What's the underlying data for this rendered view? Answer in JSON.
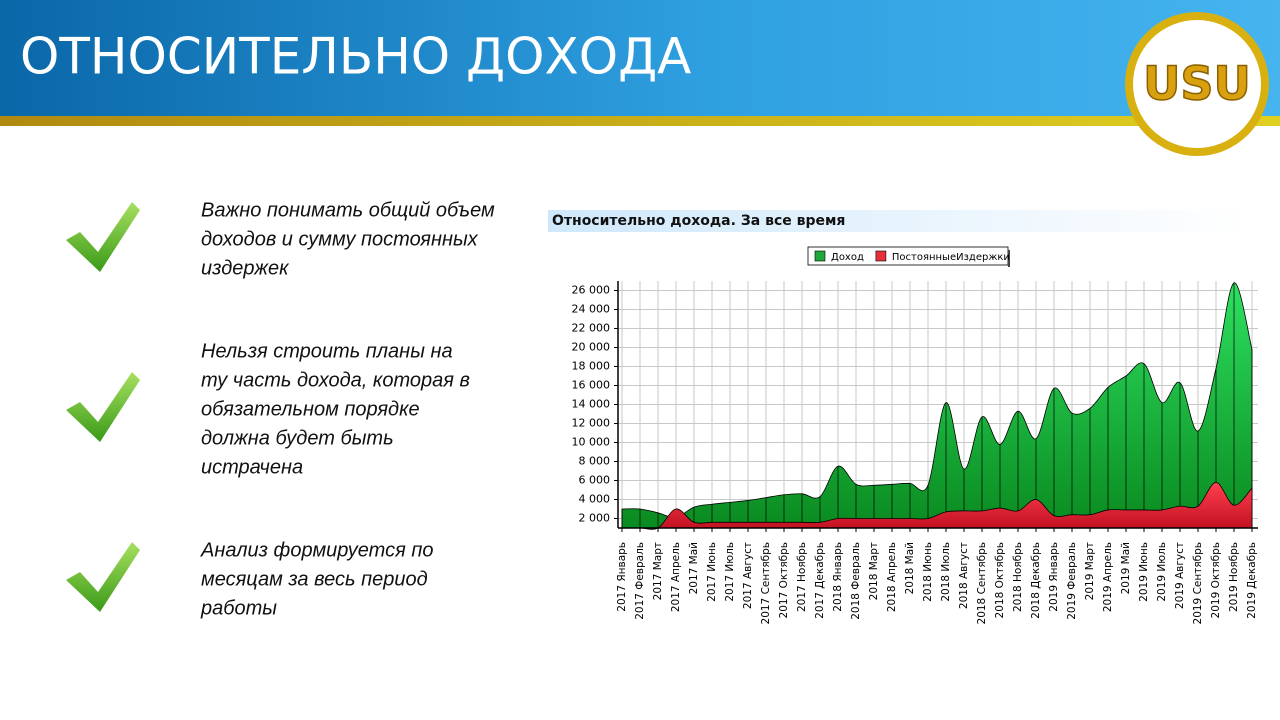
{
  "header": {
    "title": "ОТНОСИТЕЛЬНО ДОХОДА",
    "logo": "USU"
  },
  "bullets": [
    [
      "Важно понимать общий объем",
      "доходов и сумму постоянных",
      "издержек"
    ],
    [
      "Нельзя строить планы на",
      "ту часть дохода, которая в",
      "обязательном порядке",
      "должна будет быть",
      "истрачена"
    ],
    [
      "Анализ формируется по",
      "месяцам за весь период",
      "работы"
    ]
  ],
  "chart_data": {
    "type": "area",
    "title": "Относительно дохода. За все время",
    "categories": [
      "2017 Январь",
      "2017 Февраль",
      "2017 Март",
      "2017 Апрель",
      "2017 Май",
      "2017 Июнь",
      "2017 Июль",
      "2017 Август",
      "2017 Сентябрь",
      "2017 Октябрь",
      "2017 Ноябрь",
      "2017 Декабрь",
      "2018 Январь",
      "2018 Февраль",
      "2018 Март",
      "2018 Апрель",
      "2018 Май",
      "2018 Июнь",
      "2018 Июль",
      "2018 Август",
      "2018 Сентябрь",
      "2018 Октябрь",
      "2018 Ноябрь",
      "2018 Декабрь",
      "2019 Январь",
      "2019 Февраль",
      "2019 Март",
      "2019 Апрель",
      "2019 Май",
      "2019 Июнь",
      "2019 Июль",
      "2019 Август",
      "2019 Сентябрь",
      "2019 Октябрь",
      "2019 Ноябрь",
      "2019 Декабрь"
    ],
    "series": [
      {
        "name": "Доход",
        "color": "#1fa83a",
        "values": [
          3000,
          3000,
          2600,
          2100,
          3200,
          3500,
          3700,
          3900,
          4200,
          4500,
          4600,
          4300,
          7500,
          5600,
          5500,
          5600,
          5700,
          5500,
          14200,
          7200,
          12700,
          9800,
          13300,
          10400,
          15700,
          13100,
          13600,
          15800,
          17000,
          18300,
          14200,
          16300,
          11200,
          17800,
          26800,
          19800
        ]
      },
      {
        "name": "ПостоянныеИздержки",
        "color": "#e8303a",
        "values": [
          1000,
          1000,
          1000,
          3000,
          1600,
          1600,
          1600,
          1600,
          1600,
          1600,
          1600,
          1600,
          2000,
          2000,
          2000,
          2000,
          2000,
          2000,
          2700,
          2800,
          2800,
          3100,
          2800,
          4000,
          2300,
          2400,
          2400,
          2900,
          2900,
          2900,
          2900,
          3300,
          3300,
          5800,
          3400,
          5200
        ]
      }
    ],
    "ylim": [
      1000,
      27000
    ],
    "yticks": [
      {
        "value": 2000,
        "label": "2 000"
      },
      {
        "value": 4000,
        "label": "4 000"
      },
      {
        "value": 6000,
        "label": "6 000"
      },
      {
        "value": 8000,
        "label": "8 000"
      },
      {
        "value": 10000,
        "label": "10 000"
      },
      {
        "value": 12000,
        "label": "12 000"
      },
      {
        "value": 14000,
        "label": "14 000"
      },
      {
        "value": 16000,
        "label": "16 000"
      },
      {
        "value": 18000,
        "label": "18 000"
      },
      {
        "value": 20000,
        "label": "20 000"
      },
      {
        "value": 22000,
        "label": "22 000"
      },
      {
        "value": 24000,
        "label": "24 000"
      },
      {
        "value": 26000,
        "label": "26 000"
      }
    ],
    "grid": true,
    "legend": "top"
  }
}
